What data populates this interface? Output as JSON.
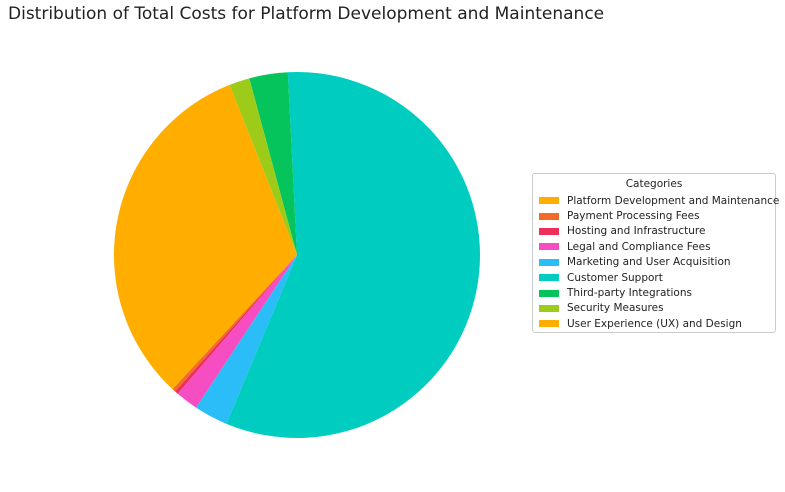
{
  "chart_data": {
    "type": "pie",
    "title": "Distribution of Total Costs for Platform Development and Maintenance",
    "legend_title": "Categories",
    "legend_position": "right",
    "start_angle_deg": 111.6,
    "direction": "counterclockwise",
    "slices": [
      {
        "label": "Platform Development and Maintenance",
        "value": 32.1,
        "color": "#FFAE00"
      },
      {
        "label": "Payment Processing Fees",
        "value": 0.3,
        "color": "#F26B2A"
      },
      {
        "label": "Hosting and Infrastructure",
        "value": 0.3,
        "color": "#EE2F59"
      },
      {
        "label": "Legal and Compliance Fees",
        "value": 2.0,
        "color": "#F64DC2"
      },
      {
        "label": "Marketing and User Acquisition",
        "value": 3.0,
        "color": "#2BBDF8"
      },
      {
        "label": "Customer Support",
        "value": 57.1,
        "color": "#00CCC0"
      },
      {
        "label": "Third-party Integrations",
        "value": 3.4,
        "color": "#06C45C"
      },
      {
        "label": "Security Measures",
        "value": 1.8,
        "color": "#9DCB1A"
      },
      {
        "label": "User Experience (UX) and Design",
        "value": 0.0,
        "color": "#FFAE00"
      }
    ]
  }
}
